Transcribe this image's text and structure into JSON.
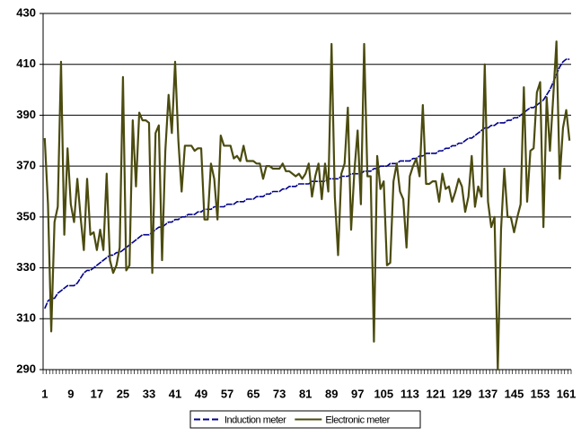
{
  "chart_data": {
    "type": "line",
    "categories": [
      1,
      null,
      null,
      null,
      null,
      null,
      null,
      null,
      9,
      null,
      null,
      null,
      null,
      null,
      null,
      null,
      17,
      null,
      null,
      null,
      null,
      null,
      null,
      null,
      25,
      null,
      null,
      null,
      null,
      null,
      null,
      null,
      33,
      null,
      null,
      null,
      null,
      null,
      null,
      null,
      41,
      null,
      null,
      null,
      null,
      null,
      null,
      null,
      49,
      null,
      null,
      null,
      null,
      null,
      null,
      null,
      57,
      null,
      null,
      null,
      null,
      null,
      null,
      null,
      65,
      null,
      null,
      null,
      null,
      null,
      null,
      null,
      73,
      null,
      null,
      null,
      null,
      null,
      null,
      null,
      81,
      null,
      null,
      null,
      null,
      null,
      null,
      null,
      89,
      null,
      null,
      null,
      null,
      null,
      null,
      null,
      97,
      null,
      null,
      null,
      null,
      null,
      null,
      null,
      105,
      null,
      null,
      null,
      null,
      null,
      null,
      null,
      113,
      null,
      null,
      null,
      null,
      null,
      null,
      null,
      121,
      null,
      null,
      null,
      null,
      null,
      null,
      null,
      129,
      null,
      null,
      null,
      null,
      null,
      null,
      null,
      137,
      null,
      null,
      null,
      null,
      null,
      null,
      null,
      145,
      null,
      null,
      null,
      null,
      null,
      null,
      null,
      153,
      null,
      null,
      null,
      null,
      null,
      null,
      null,
      161,
      null
    ],
    "series": [
      {
        "name": "Induction meter",
        "color": "#00008b",
        "style": "dashed",
        "values": [
          314,
          317,
          318,
          318,
          320,
          321,
          322,
          323,
          323,
          323,
          324,
          326,
          328,
          329,
          329,
          330,
          331,
          332,
          333,
          334,
          335,
          335,
          336,
          336,
          337,
          338,
          339,
          340,
          341,
          342,
          343,
          343,
          343,
          344,
          345,
          346,
          346,
          347,
          348,
          348,
          349,
          349,
          350,
          350,
          351,
          351,
          351,
          352,
          352,
          353,
          353,
          353,
          354,
          354,
          354,
          354,
          355,
          355,
          355,
          356,
          356,
          356,
          357,
          357,
          357,
          358,
          358,
          358,
          359,
          359,
          360,
          360,
          360,
          361,
          361,
          362,
          362,
          362,
          363,
          363,
          363,
          363,
          364,
          364,
          364,
          364,
          364,
          365,
          365,
          365,
          365,
          366,
          366,
          366,
          367,
          367,
          367,
          367,
          368,
          368,
          368,
          369,
          369,
          370,
          370,
          370,
          371,
          371,
          371,
          372,
          372,
          372,
          372,
          373,
          373,
          374,
          374,
          375,
          375,
          375,
          375,
          376,
          376,
          377,
          377,
          378,
          378,
          379,
          379,
          380,
          381,
          381,
          382,
          383,
          384,
          385,
          385,
          386,
          386,
          387,
          387,
          387,
          388,
          388,
          389,
          389,
          390,
          391,
          392,
          393,
          393,
          394,
          395,
          396,
          398,
          400,
          403,
          406,
          409,
          411,
          412,
          412
        ]
      },
      {
        "name": "Electronic meter",
        "color": "#4b4b0f",
        "style": "solid",
        "values": [
          381,
          355,
          305,
          348,
          354,
          411,
          343,
          377,
          355,
          348,
          365,
          350,
          337,
          365,
          343,
          344,
          337,
          345,
          337,
          367,
          333,
          328,
          331,
          338,
          405,
          329,
          331,
          388,
          362,
          391,
          388,
          388,
          387,
          328,
          383,
          386,
          333,
          376,
          398,
          383,
          411,
          380,
          360,
          378,
          378,
          378,
          376,
          377,
          377,
          349,
          349,
          371,
          365,
          349,
          382,
          378,
          378,
          378,
          373,
          374,
          372,
          378,
          372,
          372,
          372,
          371,
          371,
          365,
          370,
          370,
          369,
          369,
          369,
          371,
          368,
          368,
          367,
          366,
          367,
          365,
          367,
          371,
          358,
          366,
          371,
          357,
          371,
          360,
          418,
          358,
          335,
          367,
          371,
          393,
          345,
          368,
          384,
          355,
          418,
          366,
          366,
          301,
          374,
          361,
          364,
          331,
          332,
          364,
          371,
          360,
          357,
          338,
          366,
          370,
          373,
          366,
          394,
          363,
          363,
          364,
          364,
          356,
          367,
          361,
          362,
          356,
          360,
          365,
          362,
          352,
          358,
          374,
          354,
          362,
          358,
          410,
          356,
          346,
          350,
          290,
          345,
          369,
          350,
          350,
          344,
          350,
          355,
          401,
          356,
          376,
          377,
          399,
          403,
          346,
          397,
          376,
          397,
          419,
          365,
          385,
          392,
          380
        ]
      }
    ],
    "ylim": [
      290,
      430
    ],
    "yticks": [
      290,
      310,
      330,
      350,
      370,
      390,
      410,
      430
    ],
    "grid": true,
    "legend": "bottom"
  }
}
